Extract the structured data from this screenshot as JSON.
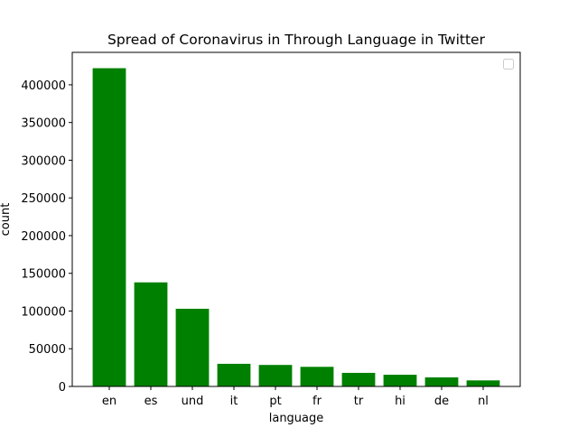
{
  "chart_data": {
    "type": "bar",
    "title": "Spread of Coronavirus in Through Language in Twitter",
    "xlabel": "language",
    "ylabel": "count",
    "categories": [
      "en",
      "es",
      "und",
      "it",
      "pt",
      "fr",
      "tr",
      "hi",
      "de",
      "nl"
    ],
    "values": [
      422000,
      138000,
      103000,
      30000,
      28500,
      26000,
      18000,
      15500,
      12000,
      8000
    ],
    "ylim": [
      0,
      443000
    ],
    "yticks": [
      0,
      50000,
      100000,
      150000,
      200000,
      250000,
      300000,
      350000,
      400000
    ],
    "bar_color": "#008000",
    "grid": false,
    "legend": {
      "placement": "top-right",
      "entries": []
    }
  }
}
